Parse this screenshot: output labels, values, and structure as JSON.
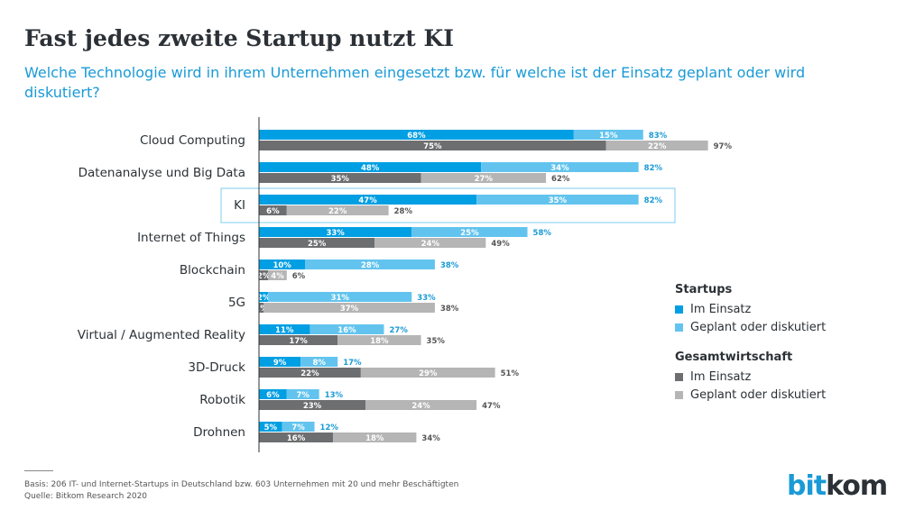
{
  "title": "Fast jedes zweite Startup nutzt KI",
  "subtitle": "Welche Technologie wird in ihrem Unternehmen eingesetzt bzw. für welche ist der Einsatz geplant oder wird diskutiert?",
  "chart_data": {
    "type": "bar",
    "orientation": "horizontal-stacked",
    "highlight": "KI",
    "categories": [
      "Cloud Computing",
      "Datenanalyse und Big Data",
      "KI",
      "Internet of Things",
      "Blockchain",
      "5G",
      "Virtual / Augmented Reality",
      "3D-Druck",
      "Robotik",
      "Drohnen"
    ],
    "groups": [
      {
        "name": "Startups",
        "series": [
          {
            "name": "Im Einsatz",
            "color": "#009fe3",
            "values": [
              68,
              48,
              47,
              33,
              10,
              2,
              11,
              9,
              6,
              5
            ]
          },
          {
            "name": "Geplant oder diskutiert",
            "color": "#62c4ee",
            "values": [
              15,
              34,
              35,
              25,
              28,
              31,
              16,
              8,
              7,
              7
            ]
          }
        ],
        "totals": [
          83,
          82,
          82,
          58,
          38,
          33,
          27,
          17,
          13,
          12
        ],
        "total_color": "#1a9ad6"
      },
      {
        "name": "Gesamtwirtschaft",
        "series": [
          {
            "name": "Im Einsatz",
            "color": "#6d6e70",
            "values": [
              75,
              35,
              6,
              25,
              2,
              1,
              17,
              22,
              23,
              16
            ]
          },
          {
            "name": "Geplant oder diskutiert",
            "color": "#b5b5b5",
            "values": [
              22,
              27,
              22,
              24,
              4,
              37,
              18,
              29,
              24,
              18
            ]
          }
        ],
        "totals": [
          97,
          62,
          28,
          49,
          6,
          38,
          35,
          51,
          47,
          34
        ],
        "total_color": "#555555"
      }
    ]
  },
  "footer": {
    "basis": "Basis: 206 IT- und Internet-Startups in Deutschland bzw. 603 Unternehmen mit 20 und mehr Beschäftigten",
    "source": "Quelle: Bitkom Research 2020"
  },
  "logo": {
    "a": "bit",
    "b": "kom"
  }
}
